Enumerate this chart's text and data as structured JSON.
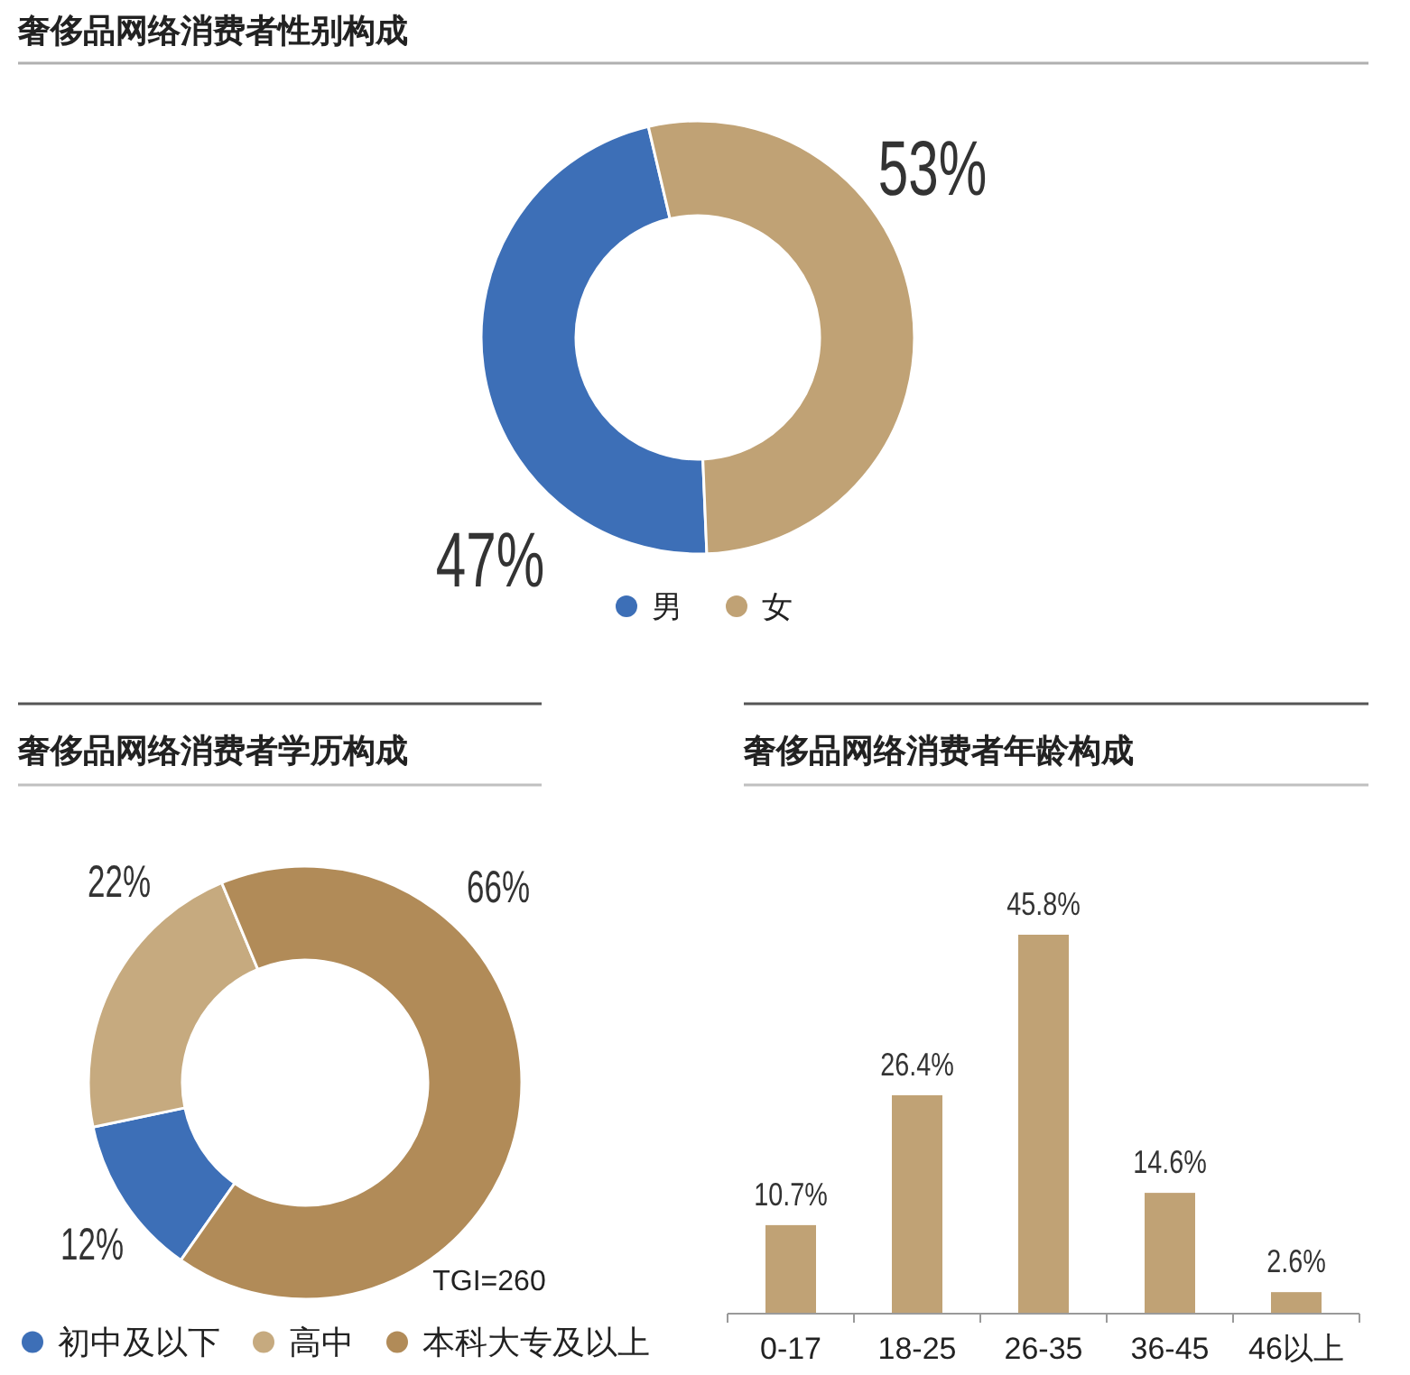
{
  "chart_data": [
    {
      "type": "donut",
      "title": "奢侈品网络消费者性别构成",
      "categories": [
        "男",
        "女"
      ],
      "values": [
        47,
        53
      ],
      "colors": [
        "#3d6fb7",
        "#c0a275"
      ],
      "value_labels": [
        "47%",
        "53%"
      ],
      "legend": "bottom"
    },
    {
      "type": "donut",
      "title": "奢侈品网络消费者学历构成",
      "categories": [
        "初中及以下",
        "高中",
        "本科大专及以上"
      ],
      "values": [
        12,
        22,
        66
      ],
      "colors": [
        "#3d6fb7",
        "#c6aa7f",
        "#b18b58"
      ],
      "value_labels": [
        "12%",
        "22%",
        "66%"
      ],
      "annotations": [
        "TGI=260"
      ],
      "legend": "bottom"
    },
    {
      "type": "bar",
      "title": "奢侈品网络消费者年龄构成",
      "categories": [
        "0-17",
        "18-25",
        "26-35",
        "36-45",
        "46以上"
      ],
      "values": [
        10.7,
        26.4,
        45.8,
        14.6,
        2.6
      ],
      "color": "#c0a275",
      "value_labels": [
        "10.7%",
        "26.4%",
        "45.8%",
        "14.6%",
        "2.6%"
      ]
    }
  ]
}
